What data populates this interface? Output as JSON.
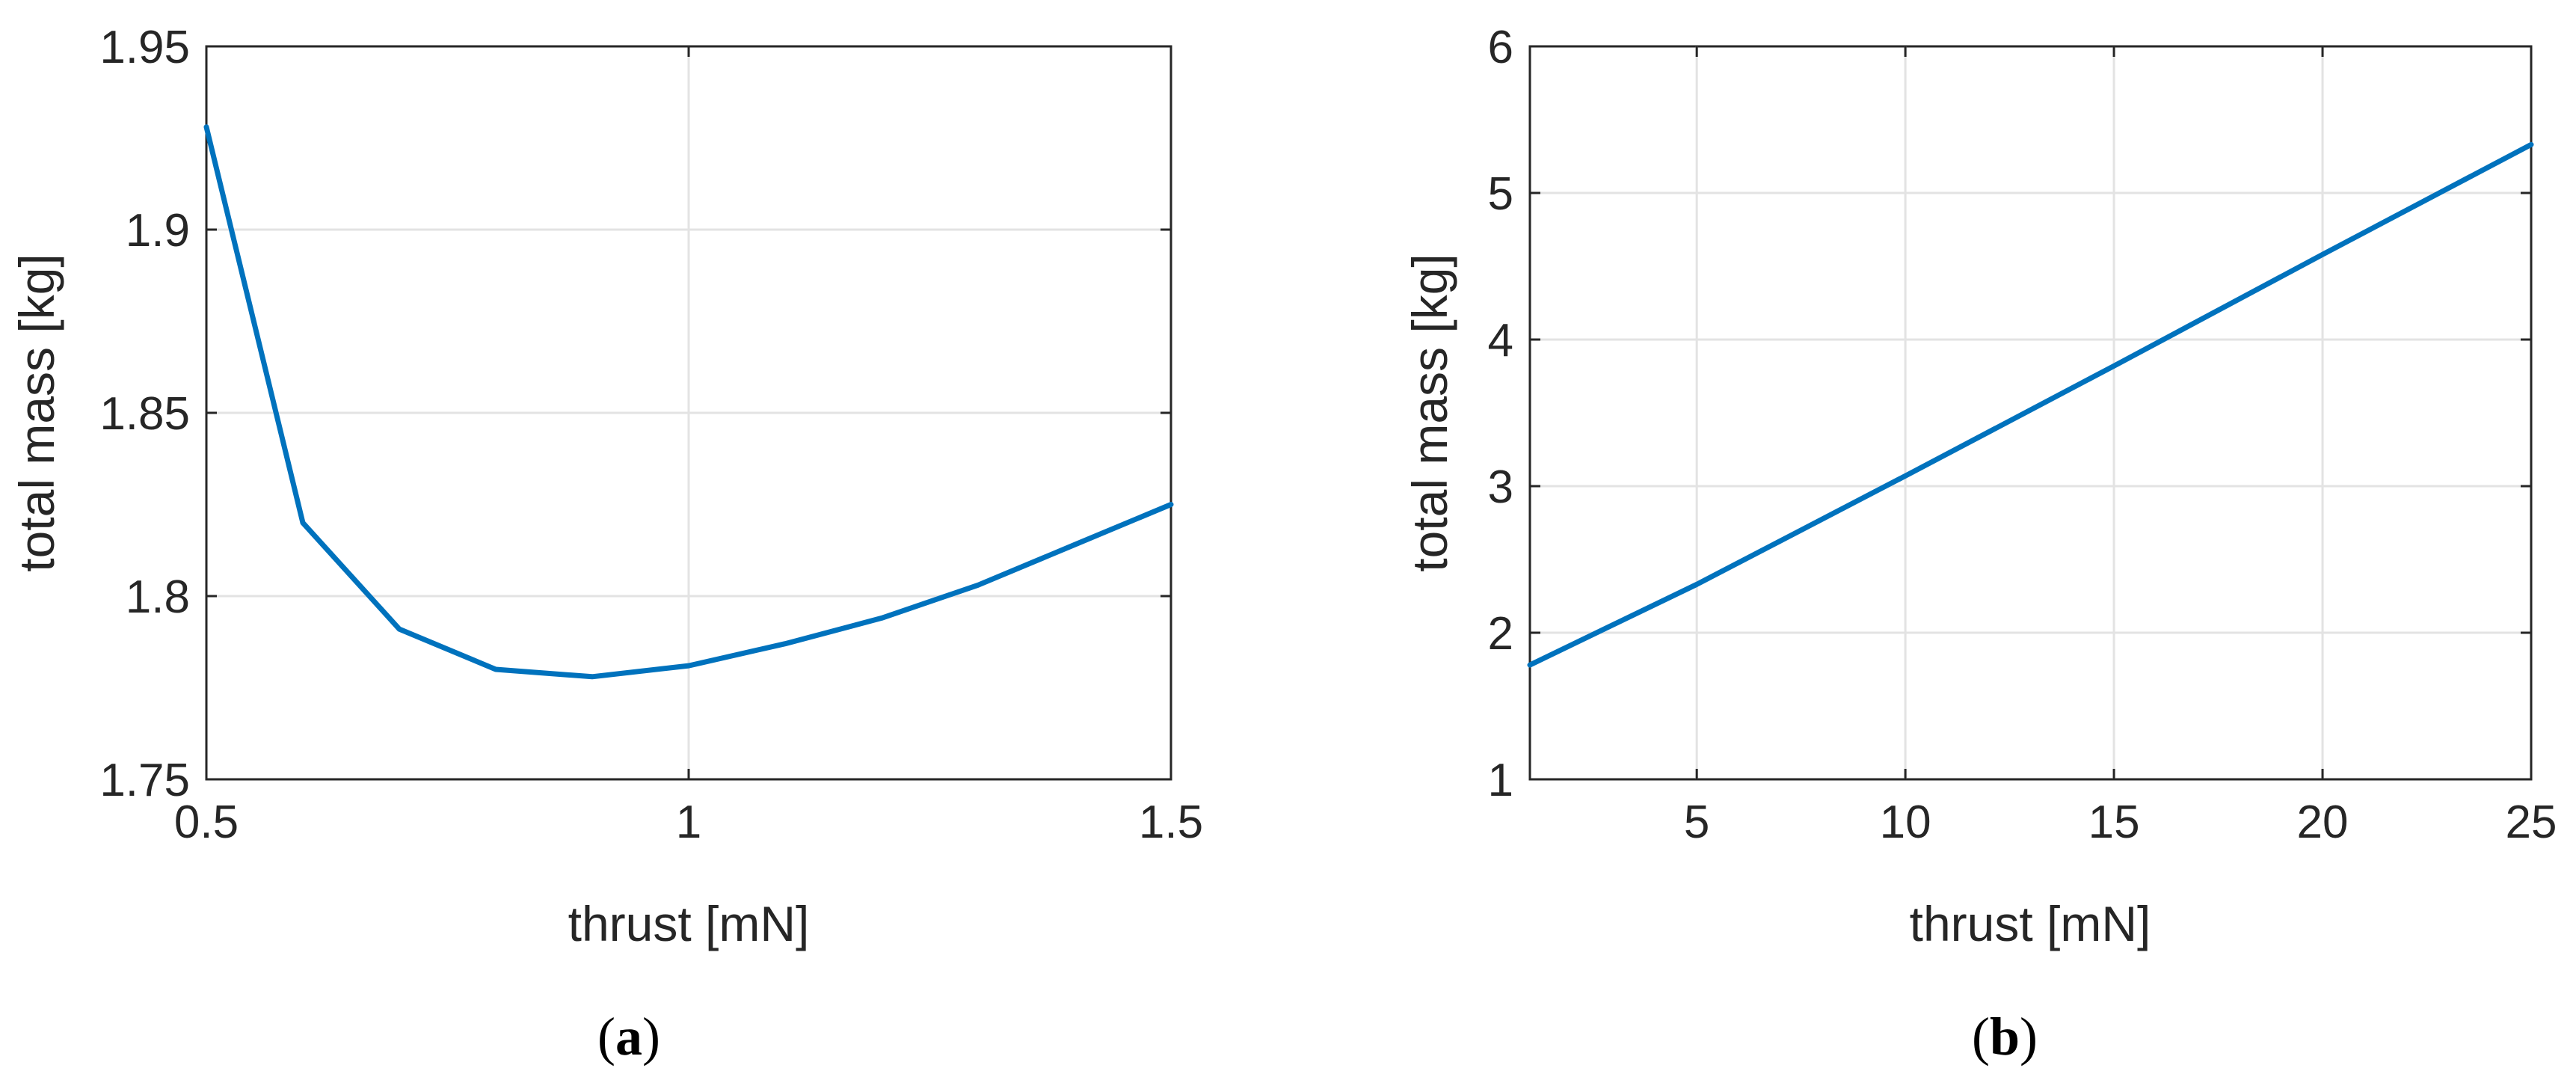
{
  "colors": {
    "series": "#0072bd",
    "axes": "#262626",
    "grid": "#e3e3e3"
  },
  "chart_data": [
    {
      "type": "line",
      "caption": {
        "open": "(",
        "letter": "a",
        "close": ")"
      },
      "xlabel": "thrust [mN]",
      "ylabel": "total mass [kg]",
      "xlim": [
        0.5,
        1.5
      ],
      "ylim": [
        1.75,
        1.95
      ],
      "xticks": [
        0.5,
        1,
        1.5
      ],
      "yticks": [
        1.75,
        1.8,
        1.85,
        1.9,
        1.95
      ],
      "xtick_labels": [
        "0.5",
        "1",
        "1.5"
      ],
      "ytick_labels": [
        "1.75",
        "1.8",
        "1.85",
        "1.9",
        "1.95"
      ],
      "grid": true,
      "series": [
        {
          "x": [
            0.5,
            0.6,
            0.7,
            0.8,
            0.9,
            1.0,
            1.1,
            1.2,
            1.3,
            1.4,
            1.5
          ],
          "y": [
            1.928,
            1.82,
            1.791,
            1.78,
            1.778,
            1.781,
            1.787,
            1.794,
            1.803,
            1.814,
            1.825
          ]
        }
      ]
    },
    {
      "type": "line",
      "caption": {
        "open": "(",
        "letter": "b",
        "close": ")"
      },
      "xlabel": "thrust [mN]",
      "ylabel": "total mass [kg]",
      "xlim": [
        1,
        25
      ],
      "ylim": [
        1,
        6
      ],
      "xticks": [
        5,
        10,
        15,
        20,
        25
      ],
      "yticks": [
        1,
        2,
        3,
        4,
        5,
        6
      ],
      "xtick_labels": [
        "5",
        "10",
        "15",
        "20",
        "25"
      ],
      "ytick_labels": [
        "1",
        "2",
        "3",
        "4",
        "5",
        "6"
      ],
      "grid": true,
      "series": [
        {
          "x": [
            1,
            5,
            10,
            15,
            20,
            25
          ],
          "y": [
            1.78,
            2.33,
            3.07,
            3.82,
            4.58,
            5.33
          ]
        }
      ]
    }
  ]
}
